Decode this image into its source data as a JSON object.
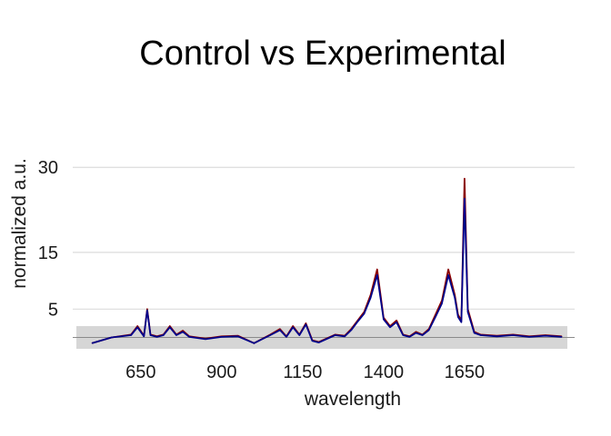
{
  "chart_data": {
    "type": "line",
    "title": "Control vs Experimental",
    "xlabel": "wavelength",
    "ylabel": "normalized a.u.",
    "xlim": [
      440,
      1990
    ],
    "ylim": [
      -2,
      31
    ],
    "x_ticks": [
      650,
      900,
      1150,
      1400,
      1650
    ],
    "y_ticks": [
      5,
      15,
      30
    ],
    "grid": true,
    "legend": "none",
    "baseline_band": [
      -2,
      2
    ],
    "series": [
      {
        "color": "#8b0000",
        "x": [
          500,
          560,
          620,
          640,
          660,
          670,
          680,
          700,
          720,
          740,
          760,
          780,
          800,
          850,
          900,
          950,
          1000,
          1050,
          1080,
          1100,
          1120,
          1140,
          1160,
          1180,
          1200,
          1250,
          1280,
          1300,
          1320,
          1340,
          1360,
          1380,
          1400,
          1420,
          1440,
          1460,
          1480,
          1500,
          1520,
          1540,
          1560,
          1580,
          1600,
          1620,
          1630,
          1640,
          1650,
          1660,
          1680,
          1700,
          1750,
          1800,
          1850,
          1900,
          1950
        ],
        "y": [
          -1,
          0,
          0.5,
          2,
          0.3,
          5,
          0.5,
          0.2,
          0.5,
          2,
          0.5,
          1.2,
          0.2,
          -0.2,
          0.2,
          0.3,
          -1,
          0.5,
          1.5,
          0.2,
          2.0,
          0.5,
          2.5,
          -0.5,
          -0.8,
          0.5,
          0.3,
          1.5,
          3.0,
          4.5,
          7.5,
          12.0,
          3.5,
          2.0,
          3.0,
          0.5,
          0.2,
          1.0,
          0.5,
          1.5,
          4.0,
          6.5,
          12.0,
          7.5,
          4.0,
          3.0,
          28.0,
          5.0,
          1.0,
          0.5,
          0.3,
          0.5,
          0.2,
          0.4,
          0.2
        ]
      },
      {
        "color": "#00008b",
        "x": [
          500,
          560,
          620,
          640,
          660,
          670,
          680,
          700,
          720,
          740,
          760,
          780,
          800,
          850,
          900,
          950,
          1000,
          1050,
          1080,
          1100,
          1120,
          1140,
          1160,
          1180,
          1200,
          1250,
          1280,
          1300,
          1320,
          1340,
          1360,
          1380,
          1400,
          1420,
          1440,
          1460,
          1480,
          1500,
          1520,
          1540,
          1560,
          1580,
          1600,
          1620,
          1630,
          1640,
          1650,
          1660,
          1680,
          1700,
          1750,
          1800,
          1850,
          1900,
          1950
        ],
        "y": [
          -1,
          0,
          0.4,
          1.8,
          0.2,
          4.8,
          0.4,
          0.1,
          0.4,
          1.8,
          0.4,
          1.0,
          0.1,
          -0.3,
          0.1,
          0.2,
          -1,
          0.4,
          1.3,
          0.1,
          1.8,
          0.4,
          2.3,
          -0.6,
          -0.9,
          0.4,
          0.2,
          1.3,
          2.8,
          4.2,
          7.0,
          11.0,
          3.2,
          1.8,
          2.7,
          0.4,
          0.1,
          0.8,
          0.4,
          1.3,
          3.6,
          6.0,
          11.0,
          7.0,
          3.6,
          2.7,
          24.5,
          4.5,
          0.8,
          0.4,
          0.2,
          0.4,
          0.1,
          0.3,
          0.1
        ]
      }
    ]
  }
}
